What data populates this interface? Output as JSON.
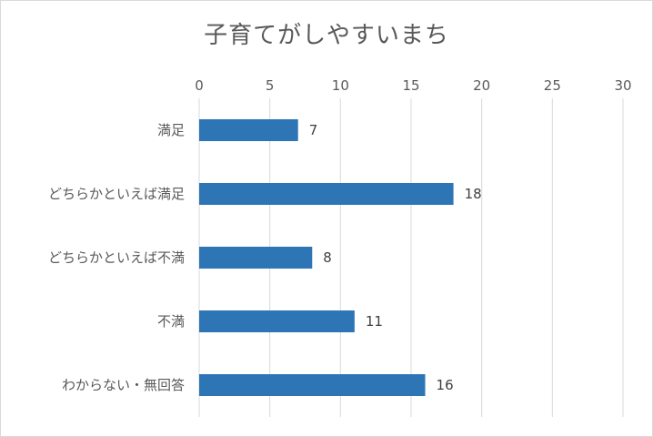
{
  "chart_data": {
    "type": "bar",
    "orientation": "horizontal",
    "title": "子育てがしやすいまち",
    "categories": [
      "満足",
      "どちらかといえば満足",
      "どちらかといえば不満",
      "不満",
      "わからない・無回答"
    ],
    "values": [
      7,
      18,
      8,
      11,
      16
    ],
    "xlim": [
      0,
      30
    ],
    "ticks": [
      0,
      5,
      10,
      15,
      20,
      25,
      30
    ],
    "tick_labels": [
      "0",
      "5",
      "10",
      "15",
      "20",
      "25",
      "30"
    ],
    "axis_position": "top",
    "grid": true,
    "legend": "none",
    "data_labels": [
      "7",
      "18",
      "8",
      "11",
      "16"
    ],
    "bar_color": "#2e75b6",
    "grid_color": "#d9d9d9"
  }
}
